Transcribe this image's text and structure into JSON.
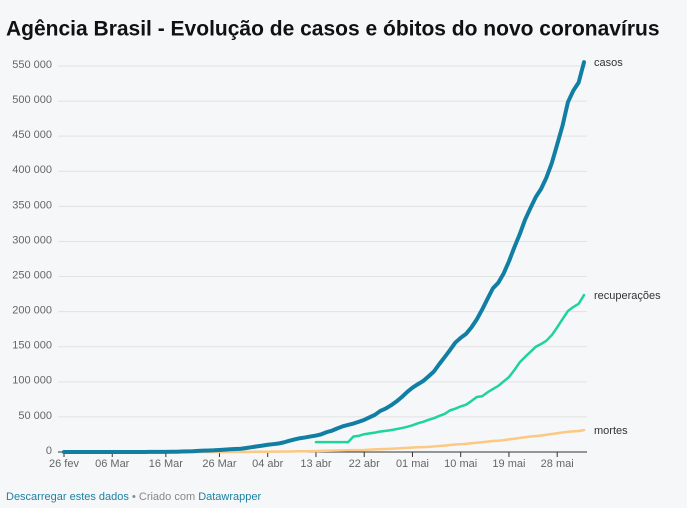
{
  "chart_data": {
    "type": "line",
    "title": "Agência Brasil - Evolução de casos e óbitos do novo coronavírus",
    "categories": [
      "26 fev",
      null,
      null,
      null,
      null,
      null,
      null,
      null,
      null,
      "06 Mar",
      null,
      null,
      null,
      null,
      null,
      null,
      null,
      null,
      null,
      "16 Mar",
      null,
      null,
      null,
      null,
      null,
      null,
      null,
      null,
      null,
      "26 Mar",
      null,
      null,
      null,
      null,
      null,
      null,
      null,
      null,
      "04 abr",
      null,
      null,
      null,
      null,
      null,
      null,
      null,
      null,
      "13 abr",
      null,
      null,
      null,
      null,
      null,
      null,
      null,
      null,
      "22 abr",
      null,
      null,
      null,
      null,
      null,
      null,
      null,
      null,
      "01 mai",
      null,
      null,
      null,
      null,
      null,
      null,
      null,
      null,
      "10 mai",
      null,
      null,
      null,
      null,
      null,
      null,
      null,
      null,
      "19 mai",
      null,
      null,
      null,
      null,
      null,
      null,
      null,
      null,
      "28 mai",
      null,
      null,
      null,
      null,
      null
    ],
    "series": [
      {
        "name": "casos",
        "color": "#117ea3",
        "values": [
          1,
          1,
          1,
          2,
          2,
          2,
          2,
          3,
          8,
          13,
          19,
          25,
          25,
          34,
          52,
          77,
          98,
          121,
          200,
          234,
          291,
          428,
          621,
          904,
          1128,
          1546,
          1891,
          2201,
          2433,
          2915,
          3417,
          3904,
          4256,
          4579,
          5717,
          6836,
          8044,
          9056,
          10360,
          11130,
          12056,
          13717,
          15927,
          17857,
          19638,
          20727,
          22169,
          23430,
          25262,
          28320,
          30425,
          33682,
          36599,
          38654,
          40581,
          43079,
          45757,
          49492,
          52995,
          58509,
          61888,
          66501,
          71886,
          78162,
          85380,
          91589,
          96559,
          101147,
          107780,
          114715,
          125218,
          135106,
          145328,
          155939,
          162699,
          168331,
          177589,
          188974,
          202918,
          218223,
          233142,
          241080,
          254220,
          271628,
          291579,
          310087,
          330890,
          347398,
          363211,
          374898,
          391222,
          411821,
          438238,
          465166,
          498440,
          514849,
          526447,
          555383
        ]
      },
      {
        "name": "recuperações",
        "color": "#1fd39d",
        "values": [
          null,
          null,
          null,
          null,
          null,
          null,
          null,
          null,
          null,
          null,
          null,
          null,
          null,
          null,
          null,
          null,
          null,
          null,
          null,
          null,
          null,
          null,
          null,
          null,
          null,
          null,
          null,
          null,
          null,
          null,
          null,
          null,
          null,
          null,
          null,
          null,
          null,
          null,
          null,
          null,
          null,
          null,
          null,
          null,
          null,
          null,
          null,
          14026,
          14026,
          14026,
          14026,
          14026,
          14026,
          14026,
          22130,
          22991,
          25318,
          26573,
          27655,
          29160,
          30152,
          31142,
          32544,
          34132,
          35935,
          38039,
          40937,
          42991,
          45815,
          48221,
          51370,
          54263,
          59297,
          61685,
          64957,
          67384,
          72597,
          78424,
          79479,
          84970,
          89672,
          94122,
          100459,
          106794,
          116683,
          127649,
          135430,
          142587,
          149911,
          153833,
          158593,
          166647,
          177604,
          189476,
          200892,
          206555,
          211080,
          223638
        ]
      },
      {
        "name": "mortes",
        "color": "#fcc882",
        "values": [
          0,
          0,
          0,
          0,
          0,
          0,
          0,
          0,
          0,
          0,
          0,
          0,
          0,
          0,
          0,
          0,
          0,
          0,
          0,
          0,
          1,
          4,
          7,
          11,
          18,
          25,
          34,
          46,
          59,
          77,
          92,
          111,
          136,
          159,
          201,
          240,
          324,
          359,
          445,
          486,
          553,
          667,
          800,
          941,
          1056,
          1124,
          1223,
          1328,
          1532,
          1736,
          1924,
          2141,
          2347,
          2462,
          2587,
          2741,
          2906,
          3313,
          3670,
          4045,
          4271,
          4543,
          5017,
          5466,
          5901,
          6329,
          6750,
          7025,
          7321,
          7921,
          8536,
          9146,
          9897,
          10627,
          11123,
          11519,
          12400,
          13149,
          13993,
          14817,
          15633,
          16118,
          16792,
          17971,
          18859,
          20047,
          21048,
          22013,
          22666,
          23473,
          24512,
          25598,
          26754,
          27878,
          28834,
          29314,
          29937,
          31199
        ]
      }
    ],
    "ylim": [
      0,
      550000
    ],
    "yticks": [
      0,
      {
        "value": 50000,
        "label": "50 000"
      },
      {
        "value": 100000,
        "label": "100 000"
      },
      {
        "value": 150000,
        "label": "150 000"
      },
      {
        "value": 200000,
        "label": "200 000"
      },
      {
        "value": 250000,
        "label": "250 000"
      },
      {
        "value": 300000,
        "label": "300 000"
      },
      {
        "value": 350000,
        "label": "350 000"
      },
      {
        "value": 400000,
        "label": "400 000"
      },
      {
        "value": 450000,
        "label": "450 000"
      },
      {
        "value": 500000,
        "label": "500 000"
      },
      {
        "value": 550000,
        "label": "550 000"
      }
    ],
    "grid": true
  },
  "footer": {
    "download": "Descarregar estes dados",
    "separator": "• Criado com",
    "credit": "Datawrapper"
  }
}
